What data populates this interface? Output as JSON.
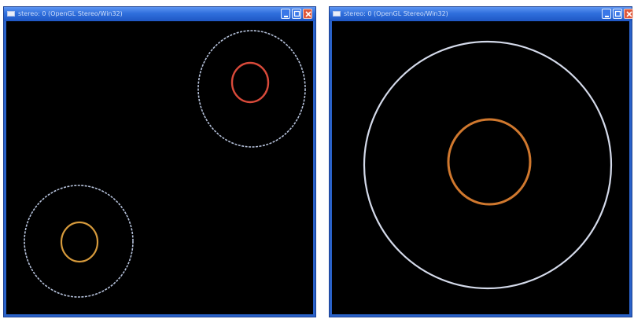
{
  "windows": [
    {
      "title": "stereo: 0 (OpenGL Stereo/Win32)",
      "controls": {
        "minimize": "minimize",
        "maximize": "maximize",
        "close": "close"
      },
      "colors": {
        "titlebar": "#2f6fdc",
        "canvas": "#000000",
        "outer_ring": "#c9d6f2",
        "inner_ring_top": "#d94a3a",
        "inner_ring_bottom": "#d69a3c"
      }
    },
    {
      "title": "stereo: 0 (OpenGL Stereo/Win32)",
      "controls": {
        "minimize": "minimize",
        "maximize": "maximize",
        "close": "close"
      },
      "colors": {
        "titlebar": "#2f6fdc",
        "canvas": "#000000",
        "outer_ring": "#dfe6f7",
        "inner_ring": "#d0782e"
      }
    }
  ]
}
